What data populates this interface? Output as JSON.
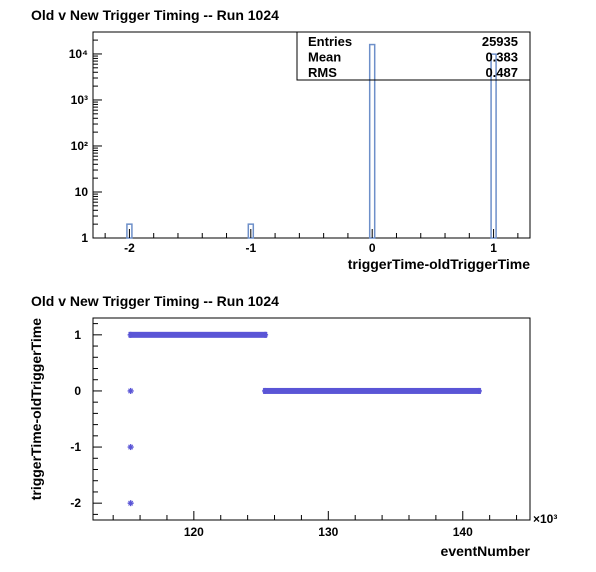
{
  "chart_data": [
    {
      "type": "bar",
      "title": "Old v New Trigger Timing -- Run 1024",
      "xlabel": "triggerTime-oldTriggerTime",
      "ylabel": "",
      "xlim": [
        -2.3,
        1.3
      ],
      "ylim": [
        1,
        30000
      ],
      "yscale": "log",
      "x_ticks": [
        "-2",
        "-1",
        "0",
        "1"
      ],
      "y_ticks": [
        "1",
        "10",
        "10²",
        "10³",
        "10⁴"
      ],
      "categories": [
        "-2",
        "-1",
        "0",
        "1"
      ],
      "values": [
        2,
        2,
        16000,
        9900
      ],
      "color": "#6d8fc9",
      "stats": {
        "entries_label": "Entries",
        "entries": "25935",
        "mean_label": "Mean",
        "mean": "0.383",
        "rms_label": "RMS",
        "rms": "0.487"
      },
      "legend_position": "top-right"
    },
    {
      "type": "scatter",
      "title": "Old v New Trigger Timing -- Run 1024",
      "xlabel": "eventNumber",
      "ylabel": "triggerTime-oldTriggerTime",
      "x_multiplier": "×10³",
      "xlim": [
        112500,
        145000
      ],
      "ylim": [
        -2.3,
        1.3
      ],
      "x_ticks": [
        "120",
        "130",
        "140"
      ],
      "y_ticks": [
        "1",
        "0",
        "-1",
        "-2"
      ],
      "marker_color": "#5a55d6",
      "series": [
        {
          "segments": [
            {
              "y": 1,
              "x_from": 115300,
              "x_to": 125300
            },
            {
              "y": 0,
              "x_from": 125300,
              "x_to": 141200
            }
          ],
          "points": [
            {
              "x": 115300,
              "y": 0
            },
            {
              "x": 115300,
              "y": -1
            },
            {
              "x": 115300,
              "y": -2
            }
          ]
        }
      ]
    }
  ]
}
